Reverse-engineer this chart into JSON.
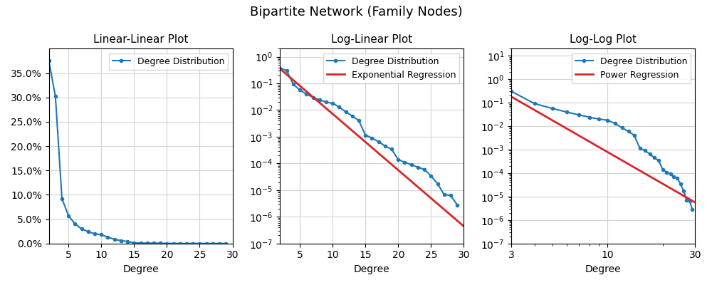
{
  "title": "Bipartite Network (Family Nodes)",
  "subplot_titles": [
    "Linear-Linear Plot",
    "Log-Linear Plot",
    "Log-Log Plot"
  ],
  "xlabel": "Degree",
  "degrees": [
    2,
    3,
    4,
    5,
    6,
    7,
    8,
    9,
    10,
    11,
    12,
    13,
    14,
    15,
    16,
    17,
    18,
    19,
    20,
    21,
    22,
    23,
    24,
    25,
    26,
    27,
    28,
    29
  ],
  "probabilities": [
    0.375,
    0.302,
    0.092,
    0.057,
    0.04,
    0.03,
    0.024,
    0.02,
    0.018,
    0.013,
    0.0085,
    0.006,
    0.004,
    0.00115,
    0.0009,
    0.00065,
    0.00045,
    0.00034,
    0.00014,
    0.00011,
    9e-05,
    7.2e-05,
    6e-05,
    3.4e-05,
    1.75e-05,
    6.8e-06,
    6.3e-06,
    2.8e-06
  ],
  "line_color": "#1f77b4",
  "regression_color": "#d62728",
  "exp_a": 0.92,
  "exp_b": -0.485,
  "power_a": 25.0,
  "power_alpha": -4.5,
  "ylim_linear_max": 0.4,
  "ylim_log_min": 1e-07,
  "ylim_log_max": 2.0,
  "ylim_loglog_min": 1e-07,
  "ylim_loglog_max": 20.0,
  "figsize": [
    10.0,
    4.0
  ],
  "dpi": 100
}
